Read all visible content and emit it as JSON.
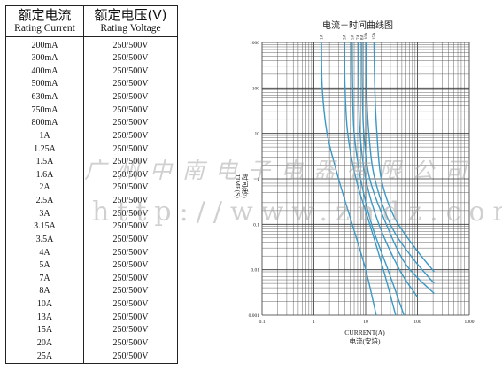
{
  "table": {
    "header": {
      "current_zh": "额定电流",
      "current_en": "Rating Current",
      "voltage_zh": "额定电压(V)",
      "voltage_en": "Rating Voltage"
    },
    "rows": [
      {
        "current": "200mA",
        "voltage": "250/500V"
      },
      {
        "current": "300mA",
        "voltage": "250/500V"
      },
      {
        "current": "400mA",
        "voltage": "250/500V"
      },
      {
        "current": "500mA",
        "voltage": "250/500V"
      },
      {
        "current": "630mA",
        "voltage": "250/500V"
      },
      {
        "current": "750mA",
        "voltage": "250/500V"
      },
      {
        "current": "800mA",
        "voltage": "250/500V"
      },
      {
        "current": "1A",
        "voltage": "250/500V"
      },
      {
        "current": "1.25A",
        "voltage": "250/500V"
      },
      {
        "current": "1.5A",
        "voltage": "250/500V"
      },
      {
        "current": "1.6A",
        "voltage": "250/500V"
      },
      {
        "current": "2A",
        "voltage": "250/500V"
      },
      {
        "current": "2.5A",
        "voltage": "250/500V"
      },
      {
        "current": "3A",
        "voltage": "250/500V"
      },
      {
        "current": "3.15A",
        "voltage": "250/500V"
      },
      {
        "current": "3.5A",
        "voltage": "250/500V"
      },
      {
        "current": "4A",
        "voltage": "250/500V"
      },
      {
        "current": "5A",
        "voltage": "250/500V"
      },
      {
        "current": "7A",
        "voltage": "250/500V"
      },
      {
        "current": "8A",
        "voltage": "250/500V"
      },
      {
        "current": "10A",
        "voltage": "250/500V"
      },
      {
        "current": "13A",
        "voltage": "250/500V"
      },
      {
        "current": "15A",
        "voltage": "250/500V"
      },
      {
        "current": "20A",
        "voltage": "250/500V"
      },
      {
        "current": "25A",
        "voltage": "250/500V"
      }
    ]
  },
  "watermark": {
    "company": "广州中南电子电器有限公司",
    "url": "http://www.zndz.com"
  },
  "chart_data": {
    "type": "line",
    "title": "电流－时间曲线图",
    "xlabel_en": "CURRENT(A)",
    "xlabel_zh": "电流(安培)",
    "ylabel_en": "TIME(S)",
    "ylabel_zh": "时间(秒)",
    "x_scale": "log",
    "y_scale": "log",
    "xlim": [
      0.1,
      1000
    ],
    "ylim": [
      0.001,
      1000
    ],
    "x_ticks": [
      "0.1",
      "1",
      "10",
      "100",
      "1000"
    ],
    "y_ticks": [
      "1000",
      "100",
      "10",
      "1",
      "0.1",
      "0.01",
      "0.001"
    ],
    "grid": true,
    "series": [
      {
        "name": "1A",
        "points": [
          [
            1.4,
            1000
          ],
          [
            1.45,
            100
          ],
          [
            1.8,
            10
          ],
          [
            3.0,
            1
          ],
          [
            5.5,
            0.1
          ],
          [
            10,
            0.01
          ],
          [
            16,
            0.001
          ]
        ]
      },
      {
        "name": "3A",
        "points": [
          [
            3.9,
            1000
          ],
          [
            4.0,
            100
          ],
          [
            4.5,
            10
          ],
          [
            6.5,
            1
          ],
          [
            12,
            0.1
          ],
          [
            22,
            0.01
          ],
          [
            38,
            0.001
          ]
        ]
      },
      {
        "name": "5A",
        "points": [
          [
            5.5,
            1000
          ],
          [
            5.6,
            100
          ],
          [
            6.0,
            10
          ],
          [
            8.0,
            1
          ],
          [
            13,
            0.1
          ],
          [
            27,
            0.01
          ],
          [
            55,
            0.001
          ]
        ]
      },
      {
        "name": "7A",
        "points": [
          [
            7.2,
            1000
          ],
          [
            7.3,
            100
          ],
          [
            7.8,
            10
          ],
          [
            10,
            1
          ],
          [
            18,
            0.1
          ],
          [
            45,
            0.01
          ],
          [
            100,
            0.0025
          ]
        ]
      },
      {
        "name": "8A",
        "points": [
          [
            8.5,
            1000
          ],
          [
            8.6,
            100
          ],
          [
            9.2,
            10
          ],
          [
            12,
            1
          ],
          [
            25,
            0.1
          ],
          [
            60,
            0.013
          ],
          [
            210,
            0.003
          ]
        ]
      },
      {
        "name": "10A",
        "points": [
          [
            10.2,
            1000
          ],
          [
            10.4,
            100
          ],
          [
            11.5,
            10
          ],
          [
            15,
            1
          ],
          [
            30,
            0.1
          ],
          [
            75,
            0.02
          ],
          [
            210,
            0.005
          ]
        ]
      },
      {
        "name": "15A",
        "points": [
          [
            14.5,
            1000
          ],
          [
            15,
            100
          ],
          [
            16.5,
            10
          ],
          [
            20,
            1
          ],
          [
            35,
            0.15
          ],
          [
            90,
            0.03
          ],
          [
            210,
            0.009
          ]
        ]
      }
    ]
  }
}
